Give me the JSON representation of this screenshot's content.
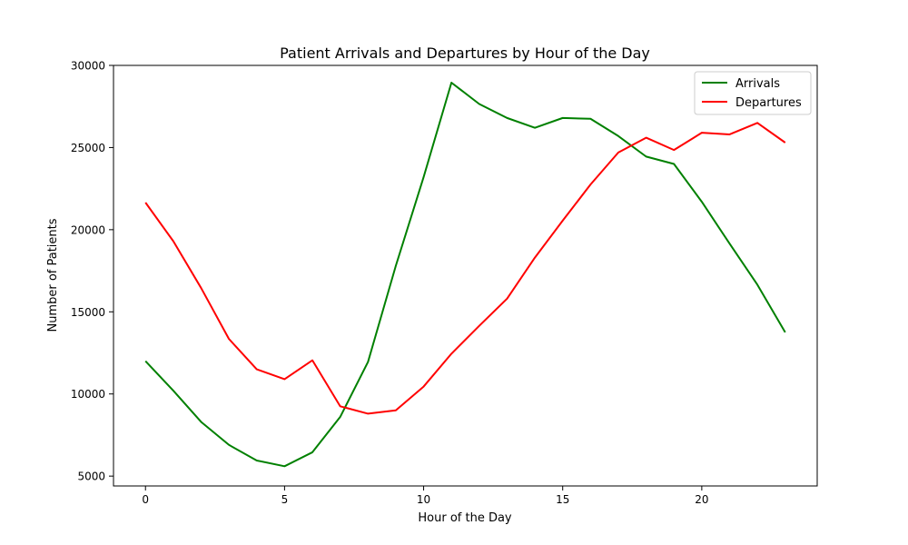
{
  "chart_data": {
    "type": "line",
    "title": "Patient Arrivals and Departures by Hour of the Day",
    "xlabel": "Hour of the Day",
    "ylabel": "Number of Patients",
    "xlim": [
      -1.15,
      24.15
    ],
    "ylim": [
      4400,
      30000
    ],
    "xticks": [
      0,
      5,
      10,
      15,
      20
    ],
    "yticks": [
      5000,
      10000,
      15000,
      20000,
      25000,
      30000
    ],
    "grid": false,
    "legend_position": "top-right",
    "x": [
      0,
      1,
      2,
      3,
      4,
      5,
      6,
      7,
      8,
      9,
      10,
      11,
      12,
      13,
      14,
      15,
      16,
      17,
      18,
      19,
      20,
      21,
      22,
      23
    ],
    "series": [
      {
        "name": "Arrivals",
        "color": "#008000",
        "values": [
          12000,
          10200,
          8300,
          6900,
          5950,
          5600,
          6450,
          8600,
          11950,
          17800,
          23200,
          28950,
          27650,
          26800,
          26200,
          26800,
          26750,
          25700,
          24450,
          24000,
          21700,
          19150,
          16650,
          13750
        ]
      },
      {
        "name": "Departures",
        "color": "#ff0000",
        "values": [
          21650,
          19300,
          16450,
          13350,
          11500,
          10900,
          12050,
          9250,
          8800,
          9000,
          10450,
          12450,
          14150,
          15800,
          18300,
          20550,
          22750,
          24700,
          25600,
          24850,
          25900,
          25800,
          26500,
          25300
        ]
      }
    ]
  }
}
